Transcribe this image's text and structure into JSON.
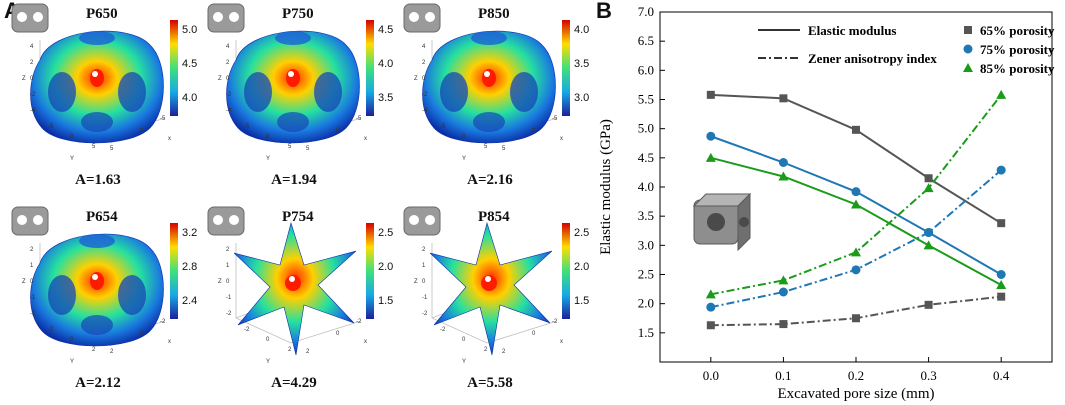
{
  "panel_a": {
    "label": "A",
    "cells": [
      {
        "title": "P650",
        "anisotropy": "A=1.63",
        "colorbar_ticks": [
          "5.0",
          "4.5",
          "4.0"
        ],
        "shape": "blob",
        "axis_labels": [
          "4",
          "2",
          "0",
          "-2",
          "-4",
          "-5",
          "0",
          "5",
          "5",
          "0",
          "-5",
          "Z",
          "Y",
          "x"
        ]
      },
      {
        "title": "P750",
        "anisotropy": "A=1.94",
        "colorbar_ticks": [
          "4.5",
          "4.0",
          "3.5"
        ],
        "shape": "blob",
        "axis_labels": [
          "4",
          "2",
          "0",
          "-2",
          "-4",
          "-5",
          "0",
          "5",
          "5",
          "0",
          "-5",
          "Z",
          "Y",
          "x"
        ]
      },
      {
        "title": "P850",
        "anisotropy": "A=2.16",
        "colorbar_ticks": [
          "4.0",
          "3.5",
          "3.0"
        ],
        "shape": "blob",
        "axis_labels": [
          "4",
          "2",
          "0",
          "-2",
          "-4",
          "-5",
          "0",
          "5",
          "5",
          "0",
          "-5",
          "Z",
          "Y",
          "x"
        ]
      },
      {
        "title": "P654",
        "anisotropy": "A=2.12",
        "colorbar_ticks": [
          "3.2",
          "2.8",
          "2.4"
        ],
        "shape": "blob",
        "axis_labels": [
          "2",
          "1",
          "0",
          "-1",
          "-2",
          "-2",
          "0",
          "2",
          "2",
          "0",
          "-2",
          "Z",
          "Y",
          "x"
        ]
      },
      {
        "title": "P754",
        "anisotropy": "A=4.29",
        "colorbar_ticks": [
          "2.5",
          "2.0",
          "1.5"
        ],
        "shape": "star",
        "axis_labels": [
          "2",
          "1",
          "0",
          "-1",
          "-2",
          "-2",
          "0",
          "2",
          "2",
          "0",
          "-2",
          "Z",
          "Y",
          "x"
        ]
      },
      {
        "title": "P854",
        "anisotropy": "A=5.58",
        "colorbar_ticks": [
          "2.5",
          "2.0",
          "1.5"
        ],
        "shape": "star",
        "axis_labels": [
          "2",
          "1",
          "0",
          "-1",
          "-2",
          "-2",
          "0",
          "2",
          "2",
          "0",
          "-2",
          "Z",
          "Y",
          "x"
        ]
      }
    ]
  },
  "panel_b": {
    "label": "B",
    "chart_data": {
      "type": "line",
      "title": "",
      "xlabel": "Excavated pore size (mm)",
      "ylabel": "Elastic modulus (GPa)",
      "x": [
        0.0,
        0.1,
        0.2,
        0.3,
        0.4
      ],
      "x_tick_labels": [
        "0.0",
        "0.1",
        "0.2",
        "0.3",
        "0.4"
      ],
      "xlim": [
        -0.07,
        0.47
      ],
      "ylim": [
        1.0,
        7.0
      ],
      "y_ticks": [
        1.5,
        2.0,
        2.5,
        3.0,
        3.5,
        4.0,
        4.5,
        5.0,
        5.5,
        6.0,
        6.5,
        7.0
      ],
      "y_tick_labels": [
        "1.5",
        "2.0",
        "2.5",
        "3.0",
        "3.5",
        "4.0",
        "4.5",
        "5.0",
        "5.5",
        "6.0",
        "6.5",
        "7.0"
      ],
      "grid": false,
      "legend_linestyle": [
        {
          "label": "Elastic modulus",
          "style": "solid"
        },
        {
          "label": "Zener anisotropy index",
          "style": "dashdot"
        }
      ],
      "series": [
        {
          "name": "65% porosity",
          "marker": "square",
          "color": "#555555",
          "elastic_modulus": [
            5.58,
            5.52,
            4.98,
            4.15,
            3.38
          ],
          "zener_anisotropy": [
            1.63,
            1.65,
            1.75,
            1.98,
            2.12
          ]
        },
        {
          "name": "75% porosity",
          "marker": "circle",
          "color": "#1f77b4",
          "elastic_modulus": [
            4.87,
            4.42,
            3.92,
            3.22,
            2.5
          ],
          "zener_anisotropy": [
            1.94,
            2.2,
            2.58,
            3.22,
            4.29
          ]
        },
        {
          "name": "85% porosity",
          "marker": "triangle",
          "color": "#1a9c1a",
          "elastic_modulus": [
            4.5,
            4.18,
            3.7,
            3.0,
            2.32
          ],
          "zener_anisotropy": [
            2.16,
            2.4,
            2.88,
            3.98,
            5.58
          ]
        }
      ]
    }
  }
}
